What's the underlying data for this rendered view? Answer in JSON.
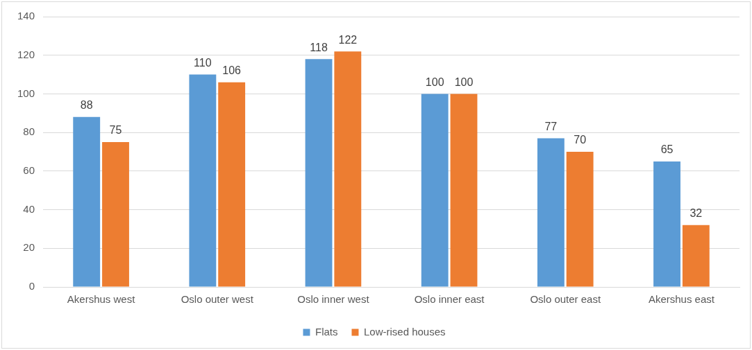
{
  "chart_data": {
    "type": "bar",
    "categories": [
      "Akershus west",
      "Oslo outer west",
      "Oslo inner west",
      "Oslo inner east",
      "Oslo outer east",
      "Akershus east"
    ],
    "series": [
      {
        "name": "Flats",
        "color": "#5b9bd5",
        "values": [
          88,
          110,
          118,
          100,
          77,
          65
        ]
      },
      {
        "name": "Low-rised houses",
        "color": "#ed7d31",
        "values": [
          75,
          106,
          122,
          100,
          70,
          32
        ]
      }
    ],
    "ylim": [
      0,
      140
    ],
    "yticks": [
      0,
      20,
      40,
      60,
      80,
      100,
      120,
      140
    ],
    "grid": "y",
    "legend": "bottom",
    "data_labels": true
  }
}
